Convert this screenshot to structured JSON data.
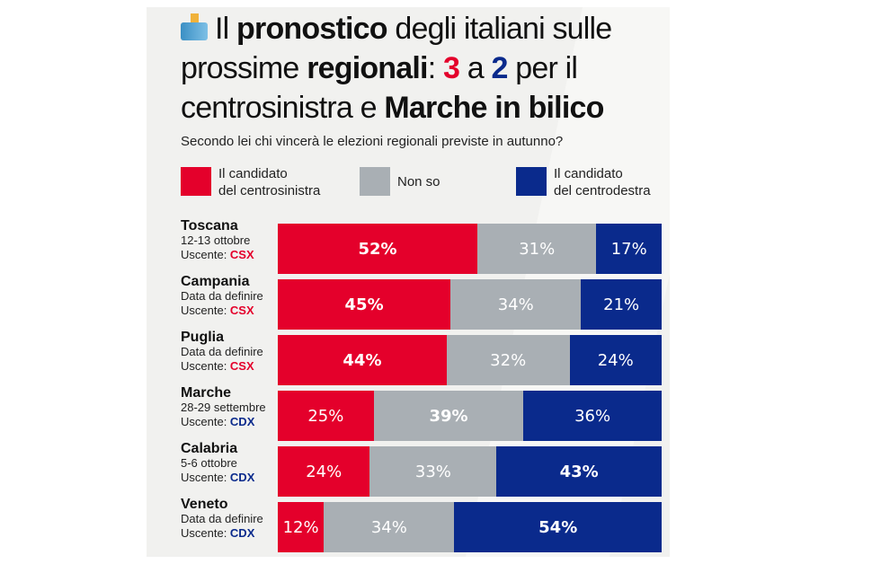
{
  "title": {
    "icon": "ballot-box-icon",
    "parts": [
      {
        "t": "Il ",
        "s": "n"
      },
      {
        "t": "pronostico",
        "s": "b"
      },
      {
        "t": " degli italiani sulle prossime ",
        "s": "n"
      },
      {
        "t": "regionali",
        "s": "b"
      },
      {
        "t": ": ",
        "s": "n"
      },
      {
        "t": "3",
        "s": "red"
      },
      {
        "t": " a ",
        "s": "n"
      },
      {
        "t": "2",
        "s": "blue"
      },
      {
        "t": " per il centrosinistra e ",
        "s": "n"
      },
      {
        "t": "Marche in bilico",
        "s": "b"
      }
    ]
  },
  "question": "Secondo lei chi vincerà le elezioni regionali previste in autunno?",
  "colors": {
    "csx": "#e4002b",
    "nonso": "#a9afb4",
    "cdx": "#0a2a8c"
  },
  "chart_data": {
    "type": "bar",
    "stacked": true,
    "orientation": "horizontal",
    "categories": [
      "Toscana",
      "Campania",
      "Puglia",
      "Marche",
      "Calabria",
      "Veneto"
    ],
    "subtitles": [
      "12-13 ottobre",
      "Data da definire",
      "Data da definire",
      "28-29 settembre",
      "5-6 ottobre",
      "Data da definire"
    ],
    "uscente_label": "Uscente:",
    "uscente": [
      "CSX",
      "CSX",
      "CSX",
      "CDX",
      "CDX",
      "CDX"
    ],
    "series": [
      {
        "name": "Il candidato del centrosinistra",
        "key": "csx",
        "values": [
          52,
          45,
          44,
          25,
          24,
          12
        ]
      },
      {
        "name": "Non so",
        "key": "nonso",
        "values": [
          31,
          34,
          32,
          39,
          33,
          34
        ]
      },
      {
        "name": "Il candidato del centrodestra",
        "key": "cdx",
        "values": [
          17,
          21,
          24,
          36,
          43,
          54
        ]
      }
    ],
    "value_suffix": "%",
    "legend": [
      {
        "line1": "Il candidato",
        "line2": "del centrosinistra",
        "key": "csx"
      },
      {
        "line1": "Non so",
        "line2": "",
        "key": "nonso"
      },
      {
        "line1": "Il candidato",
        "line2": "del centrodestra",
        "key": "cdx"
      }
    ],
    "legend_position": "top"
  }
}
